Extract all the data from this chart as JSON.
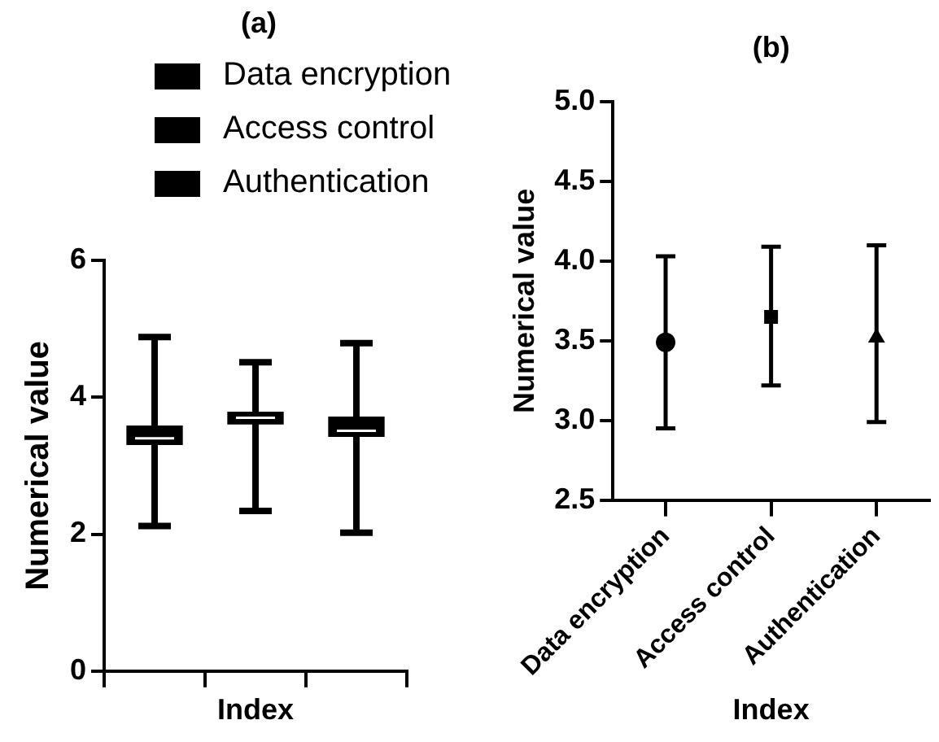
{
  "chart_data": [
    {
      "type": "box",
      "title": "(a)",
      "xlabel": "Index",
      "ylabel": "Numerical value",
      "categories": [
        null,
        null,
        null
      ],
      "ylim": [
        0,
        6
      ],
      "yticks": [
        0,
        2,
        4,
        6
      ],
      "grid": false,
      "legend": "top",
      "tick_labels": "y",
      "series": [
        {
          "name": "Data encryption",
          "color": "#000000",
          "boxes": [
            {
              "low": 2.12,
              "q1": 3.31,
              "median": 3.4,
              "q3": 3.58,
              "high": 4.88
            },
            null,
            null
          ]
        },
        {
          "name": "Access control",
          "color": "#000000",
          "boxes": [
            null,
            {
              "low": 2.34,
              "q1": 3.61,
              "median": 3.7,
              "q3": 3.78,
              "high": 4.51
            },
            null
          ]
        },
        {
          "name": "Authentication",
          "color": "#000000",
          "boxes": [
            null,
            null,
            {
              "low": 2.02,
              "q1": 3.43,
              "median": 3.51,
              "q3": 3.71,
              "high": 4.79
            }
          ]
        }
      ]
    },
    {
      "type": "scatter",
      "title": "(b)",
      "xlabel": "Index",
      "ylabel": "Numerical value",
      "categories": [
        "Data encryption",
        "Access control",
        "Authentication"
      ],
      "ylim": [
        2.5,
        5
      ],
      "yticks": [
        2.5,
        {
          "value": 3,
          "label": "3.0"
        },
        3.5,
        {
          "value": 4,
          "label": "4.0"
        },
        4.5,
        {
          "value": 5,
          "label": "5.0"
        }
      ],
      "grid": false,
      "series": [
        {
          "color": "#000000",
          "marker": "circle",
          "values": [
            3.49,
            null,
            null
          ],
          "errors": [
            [
              2.95,
              4.03
            ],
            null,
            null
          ]
        },
        {
          "color": "#000000",
          "marker": "square",
          "values": [
            null,
            3.65,
            null
          ],
          "errors": [
            null,
            [
              3.22,
              4.09
            ],
            null
          ]
        },
        {
          "color": "#000000",
          "marker": "triangle",
          "values": [
            null,
            null,
            3.52
          ],
          "errors": [
            null,
            null,
            [
              2.99,
              4.1
            ]
          ]
        }
      ]
    }
  ]
}
